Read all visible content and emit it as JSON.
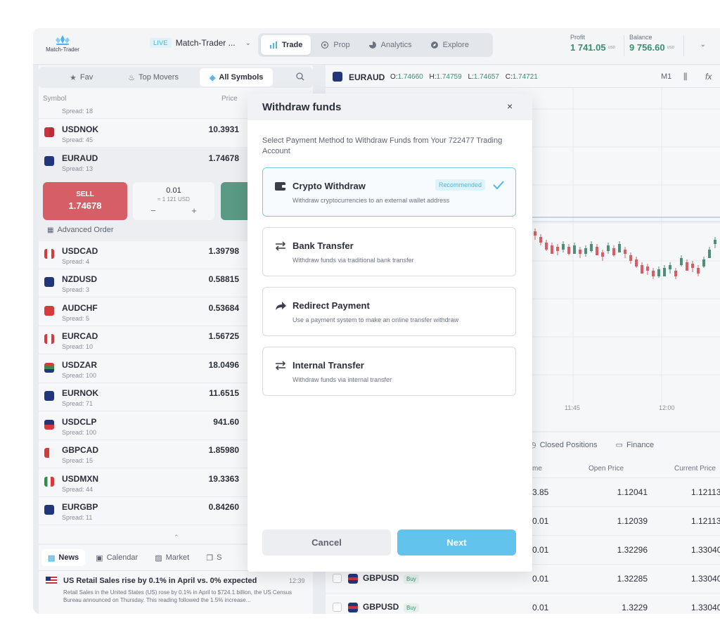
{
  "header": {
    "logo_text": "Match-Trader",
    "live_badge": "LIVE",
    "account_name": "Match-Trader ...",
    "tabs": [
      {
        "label": "Trade",
        "icon": "chart-bars-icon"
      },
      {
        "label": "Prop",
        "icon": "target-icon"
      },
      {
        "label": "Analytics",
        "icon": "pie-chart-icon"
      },
      {
        "label": "Explore",
        "icon": "compass-icon"
      }
    ],
    "profit_label": "Profit",
    "profit_value": "1 741.05",
    "profit_ccy": "USD",
    "balance_label": "Balance",
    "balance_value": "9 756.60",
    "balance_ccy": "USD"
  },
  "symbols_panel": {
    "tabs": [
      "Fav",
      "Top Movers",
      "All Symbols"
    ],
    "col_symbol": "Symbol",
    "col_price": "Price",
    "partial_spread": "Spread: 18",
    "rows": [
      {
        "name": "USDNOK",
        "spread": "Spread: 45",
        "price": "10.3931"
      },
      {
        "name": "EURAUD",
        "spread": "Spread: 13",
        "price": "1.74678"
      },
      {
        "name": "USDCAD",
        "spread": "Spread: 4",
        "price": "1.39798"
      },
      {
        "name": "NZDUSD",
        "spread": "Spread: 3",
        "price": "0.58815"
      },
      {
        "name": "AUDCHF",
        "spread": "Spread: 5",
        "price": "0.53684"
      },
      {
        "name": "EURCAD",
        "spread": "Spread: 10",
        "price": "1.56725"
      },
      {
        "name": "USDZAR",
        "spread": "Spread: 100",
        "price": "18.0496"
      },
      {
        "name": "EURNOK",
        "spread": "Spread: 71",
        "price": "11.6515"
      },
      {
        "name": "USDCLP",
        "spread": "Spread: 100",
        "price": "941.60"
      },
      {
        "name": "GBPCAD",
        "spread": "Spread: 15",
        "price": "1.85980"
      },
      {
        "name": "USDMXN",
        "spread": "Spread: 44",
        "price": "19.3363"
      },
      {
        "name": "EURGBP",
        "spread": "Spread: 11",
        "price": "0.84260"
      }
    ],
    "trade": {
      "sell_label": "SELL",
      "sell_price": "1.74678",
      "quantity": "0.01",
      "quantity_usd": "≈ 1 121 USD",
      "minus": "−",
      "plus": "+",
      "advanced_order": "Advanced Order"
    }
  },
  "news": {
    "tabs": [
      "News",
      "Calendar",
      "Market",
      "S"
    ],
    "item": {
      "title": "US Retail Sales rise by 0.1% in April vs. 0% expected",
      "time": "12:39",
      "body": "Retail Sales in the United States (US) rose by 0.1% in April to $724.1 billion, the US Census Bureau announced on Thursday. This reading followed the 1.5% increase..."
    }
  },
  "chart": {
    "symbol": "EURAUD",
    "o_label": "O:",
    "o": "1.74660",
    "h_label": "H:",
    "h": "1.74759",
    "l_label": "L:",
    "l": "1.74657",
    "c_label": "C:",
    "c": "1.74721",
    "timeframe": "M1",
    "time_labels": [
      "11:45",
      "12:00"
    ]
  },
  "positions": {
    "tabs": [
      "Closed Positions",
      "Finance"
    ],
    "col_volume": "me",
    "col_open": "Open Price",
    "col_current": "Current Price",
    "rows": [
      {
        "volume": "3.85",
        "open": "1.12041",
        "current": "1.12113"
      },
      {
        "volume": "0.01",
        "open": "1.12039",
        "current": "1.12113"
      },
      {
        "volume": "0.01",
        "open": "1.32296",
        "current": "1.33040"
      },
      {
        "volume": "0.01",
        "open": "1.32285",
        "current": "1.33040",
        "symbol": "GBPUSD",
        "side": "Buy"
      },
      {
        "volume": "0.01",
        "open": "1.3229",
        "current": "1.33040",
        "symbol": "GBPUSD",
        "side": "Buy"
      }
    ]
  },
  "modal": {
    "title": "Withdraw funds",
    "close": "×",
    "description": "Select Payment Method to Withdraw Funds from Your 722477 Trading Account",
    "options": [
      {
        "title": "Crypto Withdraw",
        "desc": "Withdraw cryptocurrencies to an external wallet address",
        "badge": "Recommended",
        "icon": "wallet-icon"
      },
      {
        "title": "Bank Transfer",
        "desc": "Withdraw funds via traditional bank transfer",
        "icon": "transfer-arrows-icon"
      },
      {
        "title": "Redirect Payment",
        "desc": "Use a payment system to make an online transfer withdraw",
        "icon": "redirect-arrow-icon"
      },
      {
        "title": "Internal Transfer",
        "desc": "Withdraw funds via internal transfer",
        "icon": "transfer-arrows-icon"
      }
    ],
    "cancel_label": "Cancel",
    "next_label": "Next"
  },
  "colors": {
    "accent": "#62c3ed",
    "sell": "#d65f67",
    "buy": "#5a9a85",
    "profit": "#3b8f70"
  }
}
